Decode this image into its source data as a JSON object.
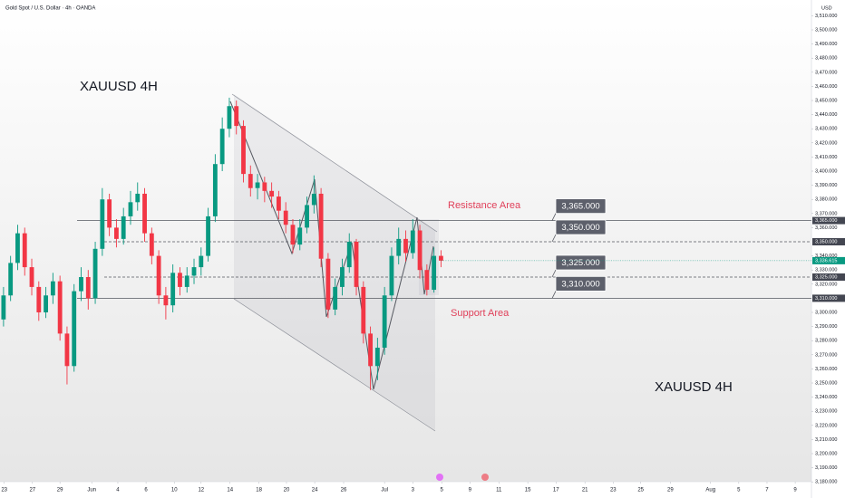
{
  "chart_data": {
    "type": "candlestick",
    "title": "Gold Spot / U.S. Dollar · 4h · OANDA",
    "currency": "USD",
    "up_color": "#089981",
    "down_color": "#f23645",
    "open": [
      3295,
      3312,
      3335,
      3356,
      3332,
      3318,
      3300,
      3312,
      3322,
      3285,
      3262,
      3315,
      3325,
      3310,
      3345,
      3380,
      3360,
      3352,
      3368,
      3378,
      3384,
      3356,
      3340,
      3312,
      3305,
      3328,
      3318,
      3326,
      3332,
      3340,
      3368,
      3405,
      3430,
      3446,
      3432,
      3398,
      3388,
      3392,
      3386,
      3382,
      3372,
      3362,
      3348,
      3360,
      3376,
      3384,
      3338,
      3302,
      3318,
      3332,
      3350,
      3318,
      3285,
      3262,
      3275,
      3312,
      3340,
      3352,
      3342,
      3358,
      3330,
      3316,
      3340
    ],
    "high": [
      3318,
      3340,
      3362,
      3360,
      3338,
      3322,
      3318,
      3328,
      3326,
      3290,
      3320,
      3332,
      3330,
      3350,
      3388,
      3384,
      3366,
      3374,
      3386,
      3392,
      3388,
      3360,
      3344,
      3318,
      3334,
      3332,
      3332,
      3338,
      3346,
      3374,
      3412,
      3438,
      3452,
      3450,
      3436,
      3404,
      3398,
      3396,
      3392,
      3386,
      3378,
      3366,
      3366,
      3382,
      3397,
      3388,
      3342,
      3324,
      3338,
      3356,
      3352,
      3322,
      3290,
      3282,
      3318,
      3346,
      3360,
      3358,
      3366,
      3362,
      3334,
      3346,
      3344
    ],
    "low": [
      3290,
      3308,
      3330,
      3326,
      3312,
      3294,
      3296,
      3306,
      3280,
      3249,
      3258,
      3308,
      3302,
      3306,
      3340,
      3354,
      3346,
      3348,
      3362,
      3372,
      3350,
      3334,
      3306,
      3295,
      3300,
      3312,
      3314,
      3320,
      3326,
      3336,
      3364,
      3400,
      3424,
      3426,
      3392,
      3382,
      3380,
      3378,
      3374,
      3366,
      3356,
      3342,
      3344,
      3356,
      3370,
      3332,
      3296,
      3298,
      3312,
      3328,
      3312,
      3278,
      3245,
      3252,
      3270,
      3308,
      3334,
      3336,
      3338,
      3324,
      3312,
      3314,
      3332
    ],
    "close": [
      3312,
      3335,
      3356,
      3332,
      3318,
      3300,
      3312,
      3322,
      3285,
      3262,
      3315,
      3325,
      3310,
      3345,
      3380,
      3360,
      3352,
      3368,
      3378,
      3384,
      3356,
      3340,
      3312,
      3305,
      3328,
      3318,
      3326,
      3332,
      3340,
      3368,
      3405,
      3430,
      3446,
      3432,
      3398,
      3388,
      3392,
      3386,
      3382,
      3372,
      3362,
      3348,
      3360,
      3376,
      3384,
      3338,
      3302,
      3318,
      3332,
      3350,
      3318,
      3285,
      3262,
      3275,
      3312,
      3340,
      3352,
      3342,
      3358,
      3330,
      3316,
      3340,
      3336.615
    ],
    "last_price_label": "3,336.615",
    "xlim": [
      -0.5,
      114.5
    ],
    "xticks": [
      {
        "value": 0.1,
        "label": "23"
      },
      {
        "value": 4.1,
        "label": "27"
      },
      {
        "value": 8,
        "label": "29"
      },
      {
        "value": 12.5,
        "label": "Jun"
      },
      {
        "value": 16.2,
        "label": "4"
      },
      {
        "value": 20.2,
        "label": "6"
      },
      {
        "value": 24.2,
        "label": "10"
      },
      {
        "value": 28,
        "label": "12"
      },
      {
        "value": 32.1,
        "label": "14"
      },
      {
        "value": 36.2,
        "label": "18"
      },
      {
        "value": 40.1,
        "label": "20"
      },
      {
        "value": 44.1,
        "label": "24"
      },
      {
        "value": 48.2,
        "label": "26"
      },
      {
        "value": 54,
        "label": "Jul"
      },
      {
        "value": 58,
        "label": "3"
      },
      {
        "value": 62.1,
        "label": "5"
      },
      {
        "value": 66.1,
        "label": "9"
      },
      {
        "value": 70.2,
        "label": "11"
      },
      {
        "value": 74.3,
        "label": "15"
      },
      {
        "value": 78.3,
        "label": "17"
      },
      {
        "value": 82.4,
        "label": "21"
      },
      {
        "value": 86.4,
        "label": "23"
      },
      {
        "value": 90.3,
        "label": "25"
      },
      {
        "value": 94.5,
        "label": "29"
      },
      {
        "value": 100.2,
        "label": "Aug"
      },
      {
        "value": 104.2,
        "label": "5"
      },
      {
        "value": 108.2,
        "label": "7"
      },
      {
        "value": 112.2,
        "label": "9"
      }
    ],
    "ylim": [
      3180,
      3510
    ],
    "yticks": [
      {
        "value": 3510,
        "label": "3,510.000"
      },
      {
        "value": 3500,
        "label": "3,500.000"
      },
      {
        "value": 3490,
        "label": "3,490.000"
      },
      {
        "value": 3480,
        "label": "3,480.000"
      },
      {
        "value": 3470,
        "label": "3,470.000"
      },
      {
        "value": 3460,
        "label": "3,460.000"
      },
      {
        "value": 3450,
        "label": "3,450.000"
      },
      {
        "value": 3440,
        "label": "3,440.000"
      },
      {
        "value": 3430,
        "label": "3,430.000"
      },
      {
        "value": 3420,
        "label": "3,420.000"
      },
      {
        "value": 3410,
        "label": "3,410.000"
      },
      {
        "value": 3400,
        "label": "3,400.000"
      },
      {
        "value": 3390,
        "label": "3,390.000"
      },
      {
        "value": 3380,
        "label": "3,380.000"
      },
      {
        "value": 3370,
        "label": "3,370.000"
      },
      {
        "value": 3360,
        "label": "3,360.000"
      },
      {
        "value": 3340,
        "label": "3,340.000"
      },
      {
        "value": 3330,
        "label": "3,330.000"
      },
      {
        "value": 3320,
        "label": "3,320.000"
      },
      {
        "value": 3300,
        "label": "3,300.000"
      },
      {
        "value": 3290,
        "label": "3,290.000"
      },
      {
        "value": 3280,
        "label": "3,280.000"
      },
      {
        "value": 3270,
        "label": "3,270.000"
      },
      {
        "value": 3260,
        "label": "3,260.000"
      },
      {
        "value": 3250,
        "label": "3,250.000"
      },
      {
        "value": 3240,
        "label": "3,240.000"
      },
      {
        "value": 3230,
        "label": "3,230.000"
      },
      {
        "value": 3220,
        "label": "3,220.000"
      },
      {
        "value": 3210,
        "label": "3,210.000"
      },
      {
        "value": 3200,
        "label": "3,200.000"
      },
      {
        "value": 3190,
        "label": "3,190.000"
      },
      {
        "value": 3180,
        "label": "3,180.000"
      }
    ],
    "levels": [
      {
        "value": 3365,
        "label": "3,365.000",
        "dash": false
      },
      {
        "value": 3350,
        "label": "3,350.000",
        "dash": true
      },
      {
        "value": 3325,
        "label": "3,325.000",
        "dash": true
      },
      {
        "value": 3310,
        "label": "3,310.000",
        "dash": false
      }
    ],
    "annotations": {
      "symbol_top": "XAUUSD 4H",
      "symbol_bottom": "XAUUSD 4H",
      "resistance": "Resistance Area",
      "support": "Support Area"
    }
  }
}
